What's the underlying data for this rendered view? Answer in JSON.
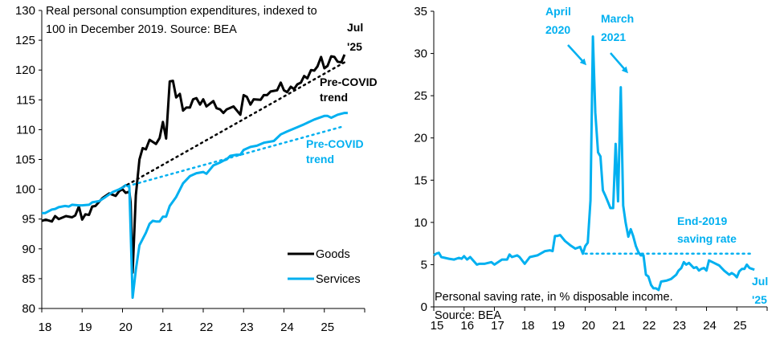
{
  "colors": {
    "goods": "#000000",
    "services": "#00b0f0",
    "saving": "#00b0f0"
  },
  "chart_data": [
    {
      "type": "line",
      "title": "Real personal consumption expenditures, indexed to 100 in December 2019. Source: BEA",
      "title_lines": [
        "Real personal consumption expenditures, indexed to",
        "100 in December 2019. Source: BEA"
      ],
      "xlabel": "",
      "ylabel": "",
      "xlim": [
        2018,
        2026
      ],
      "ylim": [
        80,
        130
      ],
      "x_ticks": [
        18,
        19,
        20,
        21,
        22,
        23,
        24,
        25
      ],
      "y_ticks": [
        80,
        85,
        90,
        95,
        100,
        105,
        110,
        115,
        120,
        125,
        130
      ],
      "legend": {
        "placement": "bottom-right",
        "entries": [
          "Goods",
          "Services"
        ]
      },
      "annotations": {
        "end_label": [
          "Jul",
          "'25"
        ],
        "goods_trend": [
          "Pre-COVID",
          "trend"
        ],
        "services_trend": [
          "Pre-COVID",
          "trend"
        ]
      },
      "series": [
        {
          "name": "Goods",
          "points": [
            [
              2018.0,
              94.7
            ],
            [
              2018.1,
              94.9
            ],
            [
              2018.25,
              94.6
            ],
            [
              2018.33,
              95.5
            ],
            [
              2018.42,
              95.0
            ],
            [
              2018.6,
              95.5
            ],
            [
              2018.75,
              95.3
            ],
            [
              2018.83,
              95.6
            ],
            [
              2018.92,
              97.1
            ],
            [
              2019.0,
              94.9
            ],
            [
              2019.08,
              95.8
            ],
            [
              2019.17,
              95.7
            ],
            [
              2019.25,
              97.1
            ],
            [
              2019.33,
              97.2
            ],
            [
              2019.5,
              98.5
            ],
            [
              2019.67,
              99.3
            ],
            [
              2019.83,
              98.9
            ],
            [
              2019.92,
              99.7
            ],
            [
              2020.0,
              100
            ],
            [
              2020.08,
              99.4
            ],
            [
              2020.17,
              99.6
            ],
            [
              2020.2,
              97.8
            ],
            [
              2020.25,
              86
            ],
            [
              2020.33,
              99
            ],
            [
              2020.42,
              105
            ],
            [
              2020.5,
              106.9
            ],
            [
              2020.58,
              106.7
            ],
            [
              2020.67,
              108.3
            ],
            [
              2020.83,
              107.6
            ],
            [
              2020.92,
              108.6
            ],
            [
              2021.0,
              111.3
            ],
            [
              2021.08,
              108.5
            ],
            [
              2021.17,
              118.1
            ],
            [
              2021.25,
              118.2
            ],
            [
              2021.33,
              115.4
            ],
            [
              2021.42,
              116.0
            ],
            [
              2021.5,
              113.2
            ],
            [
              2021.58,
              113.7
            ],
            [
              2021.67,
              113.7
            ],
            [
              2021.75,
              115.1
            ],
            [
              2021.83,
              115.3
            ],
            [
              2021.92,
              114.2
            ],
            [
              2022.0,
              115.1
            ],
            [
              2022.08,
              113.9
            ],
            [
              2022.25,
              114.8
            ],
            [
              2022.33,
              113.6
            ],
            [
              2022.42,
              113.4
            ],
            [
              2022.5,
              112.8
            ],
            [
              2022.58,
              113.4
            ],
            [
              2022.75,
              113.9
            ],
            [
              2022.92,
              112.5
            ],
            [
              2023.0,
              115.8
            ],
            [
              2023.08,
              115.5
            ],
            [
              2023.17,
              114.2
            ],
            [
              2023.25,
              115.1
            ],
            [
              2023.42,
              115.0
            ],
            [
              2023.5,
              115.8
            ],
            [
              2023.58,
              115.8
            ],
            [
              2023.67,
              116.4
            ],
            [
              2023.83,
              116.6
            ],
            [
              2023.92,
              117.9
            ],
            [
              2024.0,
              116.6
            ],
            [
              2024.08,
              116.3
            ],
            [
              2024.17,
              117.2
            ],
            [
              2024.25,
              116.8
            ],
            [
              2024.33,
              117.6
            ],
            [
              2024.42,
              117.9
            ],
            [
              2024.5,
              119.0
            ],
            [
              2024.58,
              118.6
            ],
            [
              2024.67,
              120.0
            ],
            [
              2024.75,
              119.9
            ],
            [
              2024.83,
              120.6
            ],
            [
              2024.92,
              122.2
            ],
            [
              2025.0,
              120.3
            ],
            [
              2025.08,
              120.7
            ],
            [
              2025.17,
              122.3
            ],
            [
              2025.25,
              122.2
            ],
            [
              2025.33,
              121.4
            ],
            [
              2025.42,
              121.3
            ],
            [
              2025.5,
              122.6
            ]
          ]
        },
        {
          "name": "Services",
          "points": [
            [
              2018.0,
              96
            ],
            [
              2018.08,
              96
            ],
            [
              2018.25,
              96.6
            ],
            [
              2018.33,
              96.7
            ],
            [
              2018.42,
              97.0
            ],
            [
              2018.58,
              97.2
            ],
            [
              2018.67,
              97.1
            ],
            [
              2018.75,
              97.4
            ],
            [
              2018.92,
              97.3
            ],
            [
              2019.0,
              97.3
            ],
            [
              2019.17,
              97.4
            ],
            [
              2019.25,
              97.8
            ],
            [
              2019.42,
              98.0
            ],
            [
              2019.58,
              98.7
            ],
            [
              2019.75,
              99.5
            ],
            [
              2019.92,
              100
            ],
            [
              2020.0,
              100.3
            ],
            [
              2020.08,
              100.7
            ],
            [
              2020.17,
              100.4
            ],
            [
              2020.25,
              81.8
            ],
            [
              2020.33,
              86.5
            ],
            [
              2020.42,
              90.6
            ],
            [
              2020.58,
              92.7
            ],
            [
              2020.67,
              94.2
            ],
            [
              2020.75,
              94.7
            ],
            [
              2020.83,
              94.6
            ],
            [
              2020.92,
              94.6
            ],
            [
              2021.0,
              95.4
            ],
            [
              2021.08,
              95.4
            ],
            [
              2021.17,
              97.2
            ],
            [
              2021.33,
              98.7
            ],
            [
              2021.5,
              101.0
            ],
            [
              2021.67,
              102.2
            ],
            [
              2021.83,
              102.7
            ],
            [
              2022.0,
              102.9
            ],
            [
              2022.08,
              102.6
            ],
            [
              2022.25,
              104.0
            ],
            [
              2022.42,
              104.5
            ],
            [
              2022.5,
              104.8
            ],
            [
              2022.58,
              105.0
            ],
            [
              2022.67,
              105.6
            ],
            [
              2022.83,
              105.8
            ],
            [
              2022.92,
              105.8
            ],
            [
              2023.0,
              106.6
            ],
            [
              2023.17,
              107.1
            ],
            [
              2023.33,
              107.3
            ],
            [
              2023.5,
              107.8
            ],
            [
              2023.75,
              108.1
            ],
            [
              2023.92,
              109.2
            ],
            [
              2024.08,
              109.7
            ],
            [
              2024.33,
              110.4
            ],
            [
              2024.5,
              110.9
            ],
            [
              2024.75,
              111.7
            ],
            [
              2025.0,
              112.3
            ],
            [
              2025.08,
              112.3
            ],
            [
              2025.17,
              112.0
            ],
            [
              2025.33,
              112.5
            ],
            [
              2025.5,
              112.8
            ],
            [
              2025.58,
              112.8
            ]
          ]
        },
        {
          "name": "Goods pre-COVID trend",
          "style": "dotted",
          "points": [
            [
              2020.0,
              100.3
            ],
            [
              2025.5,
              121.3
            ]
          ]
        },
        {
          "name": "Services pre-COVID trend",
          "style": "dotted",
          "points": [
            [
              2020.0,
              100.3
            ],
            [
              2025.5,
              110.6
            ]
          ]
        }
      ]
    },
    {
      "type": "line",
      "title": "Personal saving rate, in % disposable income.",
      "source": "Source: BEA",
      "xlabel": "",
      "ylabel": "",
      "xlim": [
        2015,
        2026
      ],
      "ylim": [
        0,
        35
      ],
      "x_ticks": [
        15,
        16,
        17,
        18,
        19,
        20,
        21,
        22,
        23,
        24,
        25
      ],
      "y_ticks": [
        0,
        5,
        10,
        15,
        20,
        25,
        30,
        35
      ],
      "annotations": {
        "april": [
          "April",
          "2020"
        ],
        "march": [
          "March",
          "2021"
        ],
        "end2019": [
          "End-2019",
          "saving rate"
        ],
        "end_label": [
          "Jul",
          "'25"
        ]
      },
      "series": [
        {
          "name": "Personal saving rate",
          "points": [
            [
              2015.0,
              6.1
            ],
            [
              2015.08,
              6.3
            ],
            [
              2015.17,
              6.4
            ],
            [
              2015.25,
              5.9
            ],
            [
              2015.5,
              5.7
            ],
            [
              2015.67,
              5.6
            ],
            [
              2015.83,
              5.8
            ],
            [
              2015.92,
              5.7
            ],
            [
              2016.0,
              6.0
            ],
            [
              2016.1,
              5.6
            ],
            [
              2016.2,
              5.9
            ],
            [
              2016.42,
              5.0
            ],
            [
              2016.5,
              5.1
            ],
            [
              2016.67,
              5.1
            ],
            [
              2016.9,
              5.3
            ],
            [
              2017.0,
              5.0
            ],
            [
              2017.25,
              5.6
            ],
            [
              2017.42,
              5.6
            ],
            [
              2017.5,
              6.2
            ],
            [
              2017.58,
              5.9
            ],
            [
              2017.75,
              6.1
            ],
            [
              2017.83,
              5.9
            ],
            [
              2018.0,
              5.1
            ],
            [
              2018.17,
              5.9
            ],
            [
              2018.42,
              6.1
            ],
            [
              2018.67,
              6.6
            ],
            [
              2018.83,
              6.7
            ],
            [
              2018.92,
              6.6
            ],
            [
              2019.0,
              8.4
            ],
            [
              2019.08,
              8.4
            ],
            [
              2019.17,
              8.5
            ],
            [
              2019.33,
              7.8
            ],
            [
              2019.5,
              7.3
            ],
            [
              2019.67,
              6.9
            ],
            [
              2019.83,
              7.1
            ],
            [
              2019.92,
              6.3
            ],
            [
              2020.0,
              7.2
            ],
            [
              2020.08,
              7.6
            ],
            [
              2020.17,
              12.6
            ],
            [
              2020.25,
              32.0
            ],
            [
              2020.33,
              23.0
            ],
            [
              2020.42,
              18.3
            ],
            [
              2020.5,
              17.8
            ],
            [
              2020.58,
              13.8
            ],
            [
              2020.67,
              13.1
            ],
            [
              2020.75,
              12.4
            ],
            [
              2020.83,
              11.7
            ],
            [
              2020.92,
              11.7
            ],
            [
              2021.0,
              19.3
            ],
            [
              2021.08,
              12.5
            ],
            [
              2021.17,
              26.0
            ],
            [
              2021.25,
              12.0
            ],
            [
              2021.33,
              10.0
            ],
            [
              2021.42,
              8.3
            ],
            [
              2021.5,
              9.2
            ],
            [
              2021.58,
              8.4
            ],
            [
              2021.67,
              7.2
            ],
            [
              2021.75,
              6.5
            ],
            [
              2021.83,
              6.1
            ],
            [
              2021.92,
              6.1
            ],
            [
              2022.0,
              3.8
            ],
            [
              2022.08,
              3.6
            ],
            [
              2022.17,
              2.6
            ],
            [
              2022.25,
              2.2
            ],
            [
              2022.33,
              2.2
            ],
            [
              2022.42,
              2.0
            ],
            [
              2022.5,
              3.0
            ],
            [
              2022.67,
              3.1
            ],
            [
              2022.83,
              3.3
            ],
            [
              2023.0,
              3.8
            ],
            [
              2023.08,
              4.3
            ],
            [
              2023.17,
              4.6
            ],
            [
              2023.25,
              5.3
            ],
            [
              2023.33,
              5.0
            ],
            [
              2023.42,
              5.2
            ],
            [
              2023.58,
              4.6
            ],
            [
              2023.67,
              4.7
            ],
            [
              2023.75,
              4.3
            ],
            [
              2023.83,
              4.5
            ],
            [
              2023.92,
              4.6
            ],
            [
              2024.0,
              4.3
            ],
            [
              2024.08,
              5.5
            ],
            [
              2024.25,
              5.2
            ],
            [
              2024.42,
              4.9
            ],
            [
              2024.58,
              4.3
            ],
            [
              2024.75,
              3.8
            ],
            [
              2024.83,
              4.0
            ],
            [
              2024.92,
              3.8
            ],
            [
              2025.0,
              3.5
            ],
            [
              2025.08,
              4.2
            ],
            [
              2025.17,
              4.5
            ],
            [
              2025.25,
              4.5
            ],
            [
              2025.33,
              5.0
            ],
            [
              2025.42,
              4.6
            ],
            [
              2025.5,
              4.5
            ],
            [
              2025.58,
              4.4
            ]
          ]
        },
        {
          "name": "End-2019 saving rate",
          "style": "dotted",
          "points": [
            [
              2020.0,
              6.3
            ],
            [
              2025.5,
              6.3
            ]
          ]
        }
      ]
    }
  ]
}
